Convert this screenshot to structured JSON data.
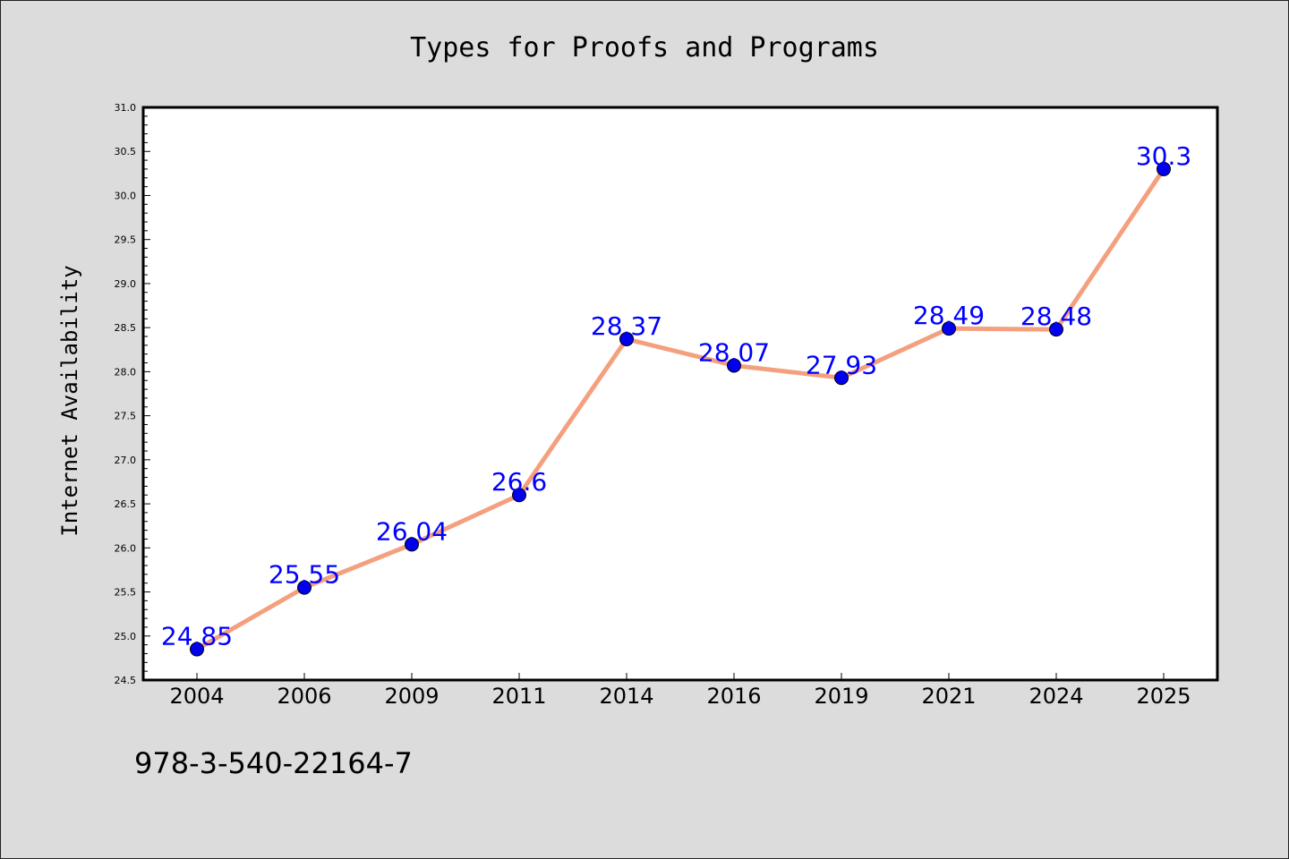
{
  "chart_data": {
    "type": "line",
    "title": "Types for Proofs and Programs",
    "xlabel": "",
    "ylabel": "Internet Availability",
    "categories": [
      "2004",
      "2006",
      "2009",
      "2011",
      "2014",
      "2016",
      "2019",
      "2021",
      "2024",
      "2025"
    ],
    "series": [
      {
        "values": [
          24.85,
          25.55,
          26.04,
          26.6,
          28.37,
          28.07,
          27.93,
          28.49,
          28.48,
          30.3
        ],
        "value_labels": [
          "24.85",
          "25.55",
          "26.04",
          "26.6",
          "28.37",
          "28.07",
          "27.93",
          "28.49",
          "28.48",
          "30.3"
        ],
        "line_color": "#f4a07f",
        "marker_color": "#0000ee",
        "label_color": "#0000ff"
      }
    ],
    "ylim": [
      24.5,
      31.0
    ],
    "yticks": [
      "24.5",
      "25.0",
      "25.5",
      "26.0",
      "26.5",
      "27.0",
      "27.5",
      "28.0",
      "28.5",
      "29.0",
      "29.5",
      "30.0",
      "30.5",
      "31.0"
    ],
    "grid": false,
    "legend": "none",
    "background_color": "#dcdcdc",
    "plot_background_color": "#ffffff"
  },
  "annotation": "978-3-540-22164-7"
}
